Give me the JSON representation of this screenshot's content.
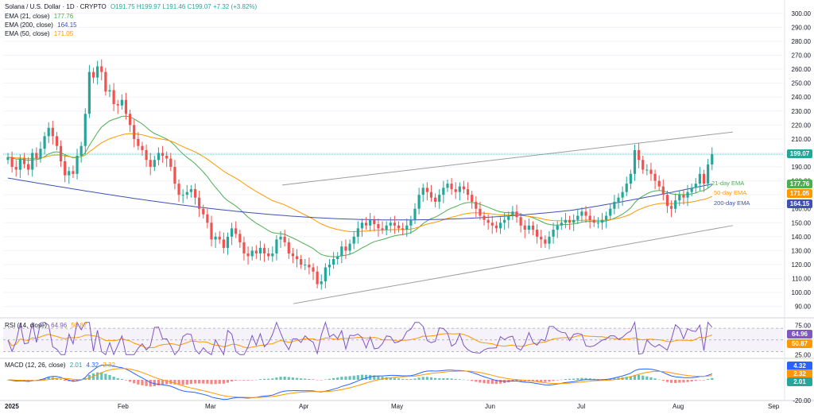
{
  "header": {
    "symbol": "Solana / U.S. Dollar · 1D · CRYPTO",
    "ohlc": "O191.75 H199.97 L191.46 C199.07 +7.32 (+3.82%)",
    "ema21_label": "EMA (21, close)",
    "ema21_value": "177.76",
    "ema200_label": "EMA (200, close)",
    "ema200_value": "164.15",
    "ema50_label": "EMA (50, close)",
    "ema50_value": "171.05"
  },
  "rsi_legend": {
    "label": "RSI (14, close)",
    "rsi_value": "64.96",
    "ma_value": "50.87"
  },
  "macd_legend": {
    "label": "MACD (12, 26, close)",
    "hist_value": "2.01",
    "macd_value": "4.32",
    "signal_value": "2.32"
  },
  "annotations": {
    "ema21": "21-day EMA",
    "ema50": "50-day EMA",
    "ema200": "200-day EMA"
  },
  "price_chips": {
    "last": "199.07",
    "ema21": "177.76",
    "ema50": "171.05",
    "ema200": "164.15"
  },
  "rsi_chips": {
    "rsi": "64.96",
    "ma": "50.87"
  },
  "macd_chips": {
    "macd": "4.32",
    "signal": "2.32",
    "hist": "2.01"
  },
  "colors": {
    "up": "#26a69a",
    "down": "#ef5350",
    "ema21": "#4caf50",
    "ema50": "#ff9800",
    "ema200": "#3f51b5",
    "rsi": "#7e57c2",
    "macd": "#2962ff",
    "signal": "#ff9800",
    "channel": "#9e9e9e"
  },
  "chart_data": {
    "type": "candlestick",
    "title": "Solana / U.S. Dollar · 1D · CRYPTO",
    "x_tick_labels": [
      "2025",
      "Feb",
      "Mar",
      "Apr",
      "May",
      "Jun",
      "Jul",
      "Aug",
      "Sep"
    ],
    "y_tick_labels": [
      "300.00",
      "290.00",
      "280.00",
      "270.00",
      "260.00",
      "250.00",
      "240.00",
      "230.00",
      "220.00",
      "210.00",
      "200.00",
      "190.00",
      "180.00",
      "170.00",
      "160.00",
      "150.00",
      "140.00",
      "130.00",
      "120.00",
      "110.00",
      "100.00",
      "90.00"
    ],
    "ylim": [
      83,
      305
    ],
    "candles_close": [
      [
        1,
        197
      ],
      [
        2,
        190
      ],
      [
        3,
        188
      ],
      [
        4,
        196
      ],
      [
        5,
        192
      ],
      [
        6,
        188
      ],
      [
        7,
        200
      ],
      [
        8,
        196
      ],
      [
        9,
        203
      ],
      [
        10,
        212
      ],
      [
        11,
        218
      ],
      [
        12,
        212
      ],
      [
        13,
        205
      ],
      [
        14,
        194
      ],
      [
        15,
        184
      ],
      [
        16,
        187
      ],
      [
        17,
        185
      ],
      [
        18,
        198
      ],
      [
        19,
        205
      ],
      [
        20,
        228
      ],
      [
        21,
        258
      ],
      [
        22,
        254
      ],
      [
        23,
        262
      ],
      [
        24,
        258
      ],
      [
        25,
        244
      ],
      [
        26,
        245
      ],
      [
        27,
        235
      ],
      [
        28,
        234
      ],
      [
        29,
        238
      ],
      [
        30,
        228
      ],
      [
        31,
        220
      ],
      [
        32,
        210
      ],
      [
        33,
        205
      ],
      [
        34,
        202
      ],
      [
        35,
        195
      ],
      [
        36,
        190
      ],
      [
        37,
        195
      ],
      [
        38,
        200
      ],
      [
        39,
        198
      ],
      [
        40,
        196
      ],
      [
        41,
        190
      ],
      [
        42,
        178
      ],
      [
        43,
        170
      ],
      [
        44,
        170
      ],
      [
        45,
        172
      ],
      [
        46,
        174
      ],
      [
        47,
        168
      ],
      [
        48,
        160
      ],
      [
        49,
        156
      ],
      [
        50,
        150
      ],
      [
        51,
        138
      ],
      [
        52,
        140
      ],
      [
        53,
        138
      ],
      [
        54,
        132
      ],
      [
        55,
        140
      ],
      [
        56,
        146
      ],
      [
        57,
        142
      ],
      [
        58,
        136
      ],
      [
        59,
        128
      ],
      [
        60,
        126
      ],
      [
        61,
        130
      ],
      [
        62,
        128
      ],
      [
        63,
        132
      ],
      [
        64,
        128
      ],
      [
        65,
        126
      ],
      [
        66,
        128
      ],
      [
        67,
        138
      ],
      [
        68,
        140
      ],
      [
        69,
        136
      ],
      [
        70,
        128
      ],
      [
        71,
        126
      ],
      [
        72,
        124
      ],
      [
        73,
        120
      ],
      [
        74,
        120
      ],
      [
        75,
        118
      ],
      [
        76,
        115
      ],
      [
        77,
        106
      ],
      [
        78,
        108
      ],
      [
        79,
        118
      ],
      [
        80,
        120
      ],
      [
        81,
        124
      ],
      [
        82,
        126
      ],
      [
        83,
        133
      ],
      [
        84,
        130
      ],
      [
        85,
        135
      ],
      [
        86,
        140
      ],
      [
        87,
        146
      ],
      [
        88,
        150
      ],
      [
        89,
        148
      ],
      [
        90,
        152
      ],
      [
        91,
        149
      ],
      [
        92,
        146
      ],
      [
        93,
        145
      ],
      [
        94,
        148
      ],
      [
        95,
        150
      ],
      [
        96,
        148
      ],
      [
        97,
        146
      ],
      [
        98,
        145
      ],
      [
        99,
        148
      ],
      [
        100,
        152
      ],
      [
        101,
        160
      ],
      [
        102,
        170
      ],
      [
        103,
        175
      ],
      [
        104,
        172
      ],
      [
        105,
        168
      ],
      [
        106,
        165
      ],
      [
        107,
        170
      ],
      [
        108,
        175
      ],
      [
        109,
        178
      ],
      [
        110,
        174
      ],
      [
        111,
        172
      ],
      [
        112,
        176
      ],
      [
        113,
        174
      ],
      [
        114,
        170
      ],
      [
        115,
        165
      ],
      [
        116,
        160
      ],
      [
        117,
        155
      ],
      [
        118,
        152
      ],
      [
        119,
        150
      ],
      [
        120,
        148
      ],
      [
        121,
        146
      ],
      [
        122,
        150
      ],
      [
        123,
        152
      ],
      [
        124,
        155
      ],
      [
        125,
        158
      ],
      [
        126,
        154
      ],
      [
        127,
        148
      ],
      [
        128,
        145
      ],
      [
        129,
        148
      ],
      [
        130,
        145
      ],
      [
        131,
        140
      ],
      [
        132,
        138
      ],
      [
        133,
        135
      ],
      [
        134,
        140
      ],
      [
        135,
        145
      ],
      [
        136,
        148
      ],
      [
        137,
        150
      ],
      [
        138,
        152
      ],
      [
        139,
        150
      ],
      [
        140,
        152
      ],
      [
        141,
        155
      ],
      [
        142,
        158
      ],
      [
        143,
        155
      ],
      [
        144,
        152
      ],
      [
        145,
        150
      ],
      [
        146,
        150
      ],
      [
        147,
        152
      ],
      [
        148,
        155
      ],
      [
        149,
        160
      ],
      [
        150,
        165
      ],
      [
        151,
        168
      ],
      [
        152,
        172
      ],
      [
        153,
        178
      ],
      [
        154,
        185
      ],
      [
        155,
        202
      ],
      [
        156,
        195
      ],
      [
        157,
        188
      ],
      [
        158,
        188
      ],
      [
        159,
        185
      ],
      [
        160,
        180
      ],
      [
        161,
        176
      ],
      [
        162,
        170
      ],
      [
        163,
        162
      ],
      [
        164,
        160
      ],
      [
        165,
        166
      ],
      [
        166,
        170
      ],
      [
        167,
        168
      ],
      [
        168,
        172
      ],
      [
        169,
        175
      ],
      [
        170,
        178
      ],
      [
        171,
        185
      ],
      [
        172,
        178
      ],
      [
        173,
        191.75
      ],
      [
        174,
        199.07
      ]
    ],
    "series": [
      {
        "name": "EMA (21, close)",
        "last": 177.76
      },
      {
        "name": "EMA (50, close)",
        "last": 171.05
      },
      {
        "name": "EMA (200, close)",
        "last": 164.15
      }
    ],
    "rsi": {
      "label": "RSI (14, close)",
      "value": 64.96,
      "ma": 50.87,
      "ticks": [
        "75.00",
        "25.00"
      ]
    },
    "macd": {
      "label": "MACD (12, 26, close)",
      "hist": 2.01,
      "macd": 4.32,
      "signal": 2.32,
      "ticks": [
        "-20.00"
      ]
    }
  }
}
